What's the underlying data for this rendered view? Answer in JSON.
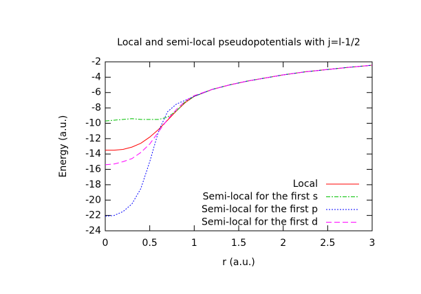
{
  "chart_data": {
    "type": "line",
    "title": "Local and semi-local pseudopotentials with j=l-1/2",
    "x_label": "r (a.u.)",
    "y_label": "Energy (a.u.)",
    "x": [
      0,
      0.1,
      0.2,
      0.3,
      0.4,
      0.5,
      0.6,
      0.7,
      0.8,
      0.9,
      1.0,
      1.2,
      1.4,
      1.6,
      1.8,
      2.0,
      2.25,
      2.5,
      2.75,
      3.0
    ],
    "series": [
      {
        "name": "Local",
        "color": "#ff0000",
        "values": [
          -13.5,
          -13.5,
          -13.4,
          -13.1,
          -12.6,
          -11.8,
          -10.8,
          -9.6,
          -8.4,
          -7.3,
          -6.5,
          -5.6,
          -5.0,
          -4.5,
          -4.1,
          -3.7,
          -3.3,
          -3.0,
          -2.7,
          -2.45
        ]
      },
      {
        "name": "Semi-local for the first s",
        "color": "#00c000",
        "values": [
          -9.7,
          -9.6,
          -9.5,
          -9.4,
          -9.5,
          -9.5,
          -9.5,
          -9.2,
          -8.4,
          -7.2,
          -6.5,
          -5.6,
          -5.0,
          -4.5,
          -4.1,
          -3.7,
          -3.3,
          -3.0,
          -2.7,
          -2.45
        ]
      },
      {
        "name": "Semi-local for the first p",
        "color": "#0000ff",
        "values": [
          -22.1,
          -22.0,
          -21.5,
          -20.5,
          -18.5,
          -15.0,
          -11.0,
          -8.5,
          -7.5,
          -7.0,
          -6.5,
          -5.6,
          -5.0,
          -4.5,
          -4.1,
          -3.7,
          -3.3,
          -3.0,
          -2.7,
          -2.45
        ]
      },
      {
        "name": "Semi-local for the first d",
        "color": "#ff00ff",
        "values": [
          -15.4,
          -15.3,
          -15.0,
          -14.6,
          -13.8,
          -12.7,
          -11.1,
          -9.5,
          -8.2,
          -7.1,
          -6.4,
          -5.6,
          -5.0,
          -4.5,
          -4.1,
          -3.7,
          -3.3,
          -3.0,
          -2.7,
          -2.45
        ]
      }
    ],
    "xlim": [
      0,
      3
    ],
    "xticks": [
      0,
      0.5,
      1,
      1.5,
      2,
      2.5,
      3
    ],
    "ylim": [
      -24,
      -2
    ],
    "yticks": [
      -2,
      -4,
      -6,
      -8,
      -10,
      -12,
      -14,
      -16,
      -18,
      -20,
      -22,
      -24
    ],
    "legend": "bottom-right"
  }
}
